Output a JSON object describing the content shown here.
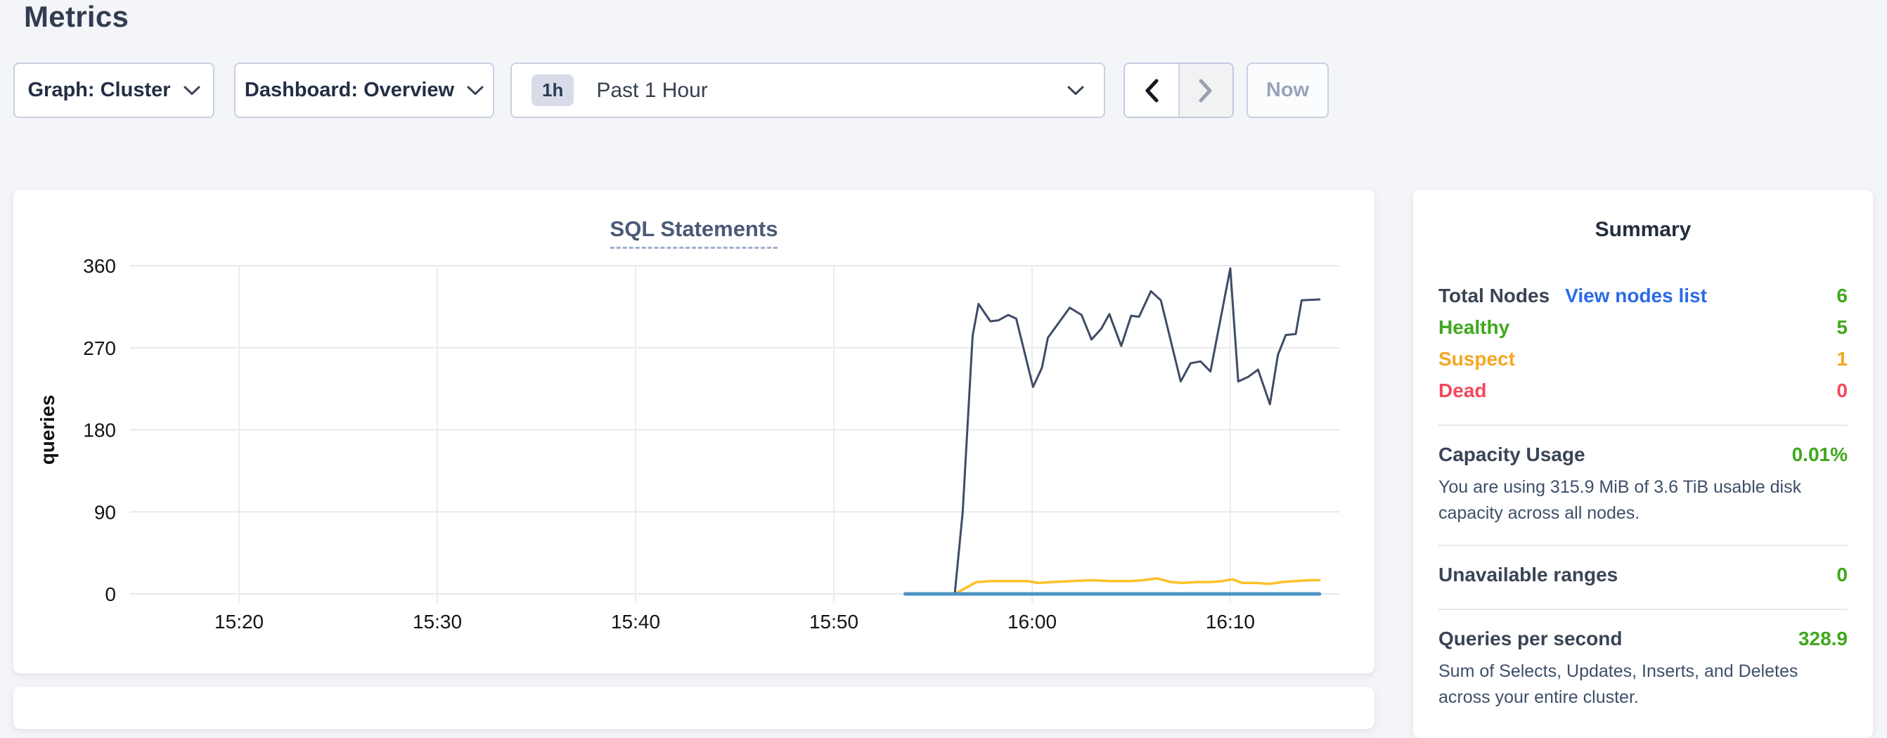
{
  "page": {
    "title": "Metrics"
  },
  "toolbar": {
    "graph_dropdown": {
      "label": "Graph: Cluster"
    },
    "dashboard_dropdown": {
      "label": "Dashboard: Overview"
    },
    "time_selector": {
      "badge": "1h",
      "label": "Past 1 Hour"
    },
    "now_button_label": "Now"
  },
  "chart_data": {
    "type": "line",
    "title": "SQL Statements",
    "ylabel": "queries",
    "ylim": [
      0,
      360
    ],
    "y_ticks": [
      0,
      90,
      180,
      270,
      360
    ],
    "x_domain_minutes": [
      14.5,
      75.5
    ],
    "x_ticks": [
      {
        "t": 20,
        "label": "15:20"
      },
      {
        "t": 30,
        "label": "15:30"
      },
      {
        "t": 40,
        "label": "15:40"
      },
      {
        "t": 50,
        "label": "15:50"
      },
      {
        "t": 60,
        "label": "16:00"
      },
      {
        "t": 70,
        "label": "16:10"
      }
    ],
    "grid": true,
    "legend": "none",
    "series": [
      {
        "name": "dark-navy-series",
        "color": "#3f4c66",
        "width": 3,
        "points": [
          [
            56.1,
            0
          ],
          [
            56.5,
            90
          ],
          [
            57.0,
            283
          ],
          [
            57.3,
            318
          ],
          [
            57.9,
            299
          ],
          [
            58.3,
            300
          ],
          [
            58.8,
            306
          ],
          [
            59.2,
            302
          ],
          [
            60.05,
            227
          ],
          [
            60.5,
            248
          ],
          [
            60.8,
            281
          ],
          [
            61.9,
            314
          ],
          [
            62.5,
            306
          ],
          [
            63.0,
            279
          ],
          [
            63.5,
            291
          ],
          [
            63.9,
            307
          ],
          [
            64.5,
            272
          ],
          [
            65.0,
            305
          ],
          [
            65.4,
            304
          ],
          [
            66.0,
            332
          ],
          [
            66.5,
            322
          ],
          [
            67.5,
            233
          ],
          [
            68.0,
            253
          ],
          [
            68.5,
            255
          ],
          [
            69.0,
            244
          ],
          [
            70.0,
            357
          ],
          [
            70.4,
            233
          ],
          [
            70.9,
            238
          ],
          [
            71.4,
            246
          ],
          [
            72.0,
            208
          ],
          [
            72.4,
            262
          ],
          [
            72.8,
            284
          ],
          [
            73.3,
            285
          ],
          [
            73.6,
            322
          ],
          [
            74.5,
            323
          ]
        ]
      },
      {
        "name": "yellow-series",
        "color": "#fdc127",
        "width": 3.5,
        "points": [
          [
            56.1,
            0
          ],
          [
            56.6,
            6
          ],
          [
            57.2,
            13
          ],
          [
            58.0,
            14
          ],
          [
            59.0,
            14
          ],
          [
            59.8,
            14
          ],
          [
            60.3,
            12
          ],
          [
            61.0,
            13
          ],
          [
            62.0,
            14
          ],
          [
            63.0,
            15
          ],
          [
            64.0,
            14
          ],
          [
            65.0,
            14
          ],
          [
            65.6,
            15
          ],
          [
            66.3,
            17
          ],
          [
            67.0,
            13
          ],
          [
            67.6,
            12
          ],
          [
            68.3,
            13
          ],
          [
            69.0,
            13
          ],
          [
            69.6,
            14
          ],
          [
            70.1,
            16
          ],
          [
            70.6,
            12
          ],
          [
            71.3,
            12
          ],
          [
            72.0,
            11
          ],
          [
            72.6,
            13
          ],
          [
            73.3,
            14
          ],
          [
            74.0,
            15
          ],
          [
            74.5,
            15
          ]
        ]
      },
      {
        "name": "blue-series",
        "color": "#4d92c6",
        "width": 5,
        "points": [
          [
            53.6,
            0
          ],
          [
            74.5,
            0
          ]
        ]
      }
    ]
  },
  "summary": {
    "title": "Summary",
    "total_nodes": {
      "label": "Total Nodes",
      "link": "View nodes list",
      "value": "6",
      "value_color": "#3fa81c"
    },
    "node_statuses": [
      {
        "label": "Healthy",
        "value": "5",
        "color": "#3fa81c"
      },
      {
        "label": "Suspect",
        "value": "1",
        "color": "#f5a623"
      },
      {
        "label": "Dead",
        "value": "0",
        "color": "#f2495c"
      }
    ],
    "metrics": [
      {
        "label": "Capacity Usage",
        "value": "0.01%",
        "value_color": "#3fa81c",
        "description": "You are using 315.9 MiB of 3.6 TiB usable disk capacity across all nodes."
      },
      {
        "label": "Unavailable ranges",
        "value": "0",
        "value_color": "#3fa81c",
        "description": ""
      },
      {
        "label": "Queries per second",
        "value": "328.9",
        "value_color": "#3fa81c",
        "description": "Sum of Selects, Updates, Inserts, and Deletes across your entire cluster."
      }
    ]
  },
  "colors": {
    "green": "#3fa81c",
    "orange": "#f5a623",
    "red": "#f2495c",
    "link_blue": "#2b6ae8",
    "series_navy": "#3f4c66",
    "series_yellow": "#fdc127",
    "series_blue": "#4d92c6"
  }
}
